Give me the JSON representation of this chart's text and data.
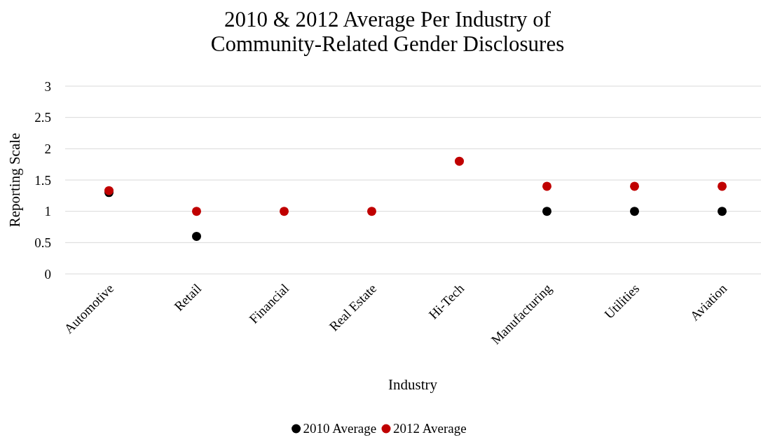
{
  "chart_data": {
    "type": "scatter",
    "title": "2010 & 2012 Average Per Industry of Community-Related Gender Disclosures",
    "xlabel": "Industry",
    "ylabel": "Reporting Scale",
    "categories": [
      "Automotive",
      "Retail",
      "Financial",
      "Real Estate",
      "Hi-Tech",
      "Manufacturing",
      "Utilities",
      "Aviation"
    ],
    "series": [
      {
        "name": "2010 Average",
        "color": "#000000",
        "values": [
          1.3,
          0.6,
          null,
          null,
          null,
          1,
          1,
          1
        ]
      },
      {
        "name": "2012 Average",
        "color": "#c00000",
        "values": [
          1.33,
          1,
          1,
          1,
          1.8,
          1.4,
          1.4,
          1.4
        ]
      }
    ],
    "ylim": [
      0,
      3
    ],
    "yticks": [
      0,
      0.5,
      1,
      1.5,
      2,
      2.5,
      3
    ],
    "grid": "y",
    "legend": "bottom",
    "marker": "circle"
  }
}
